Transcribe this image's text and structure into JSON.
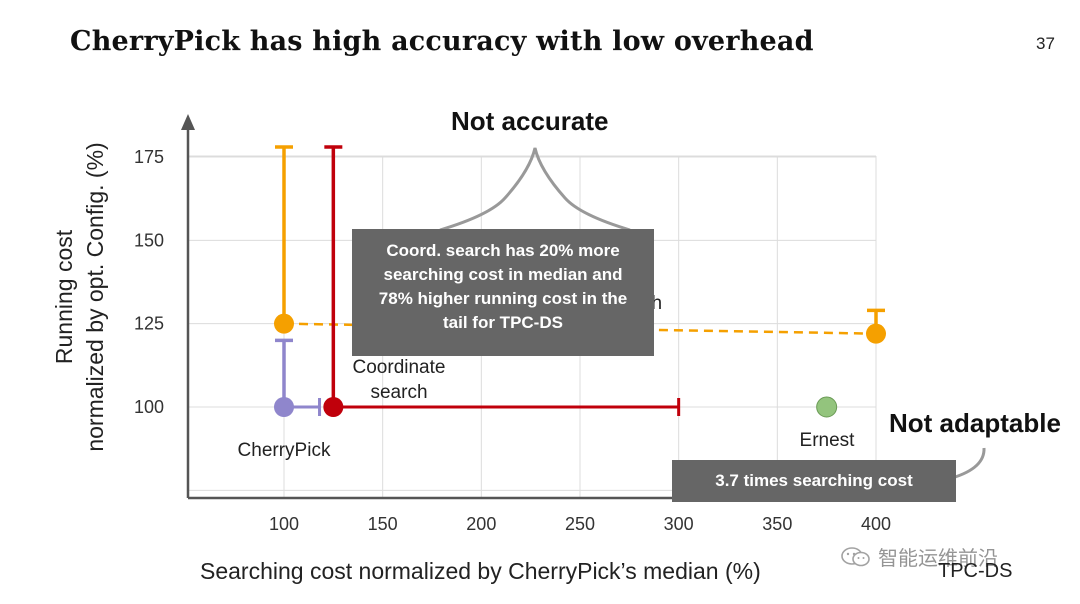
{
  "slide": {
    "title": "CherryPick has high accuracy with low overhead",
    "page_number": "37",
    "tag": "TPC-DS",
    "watermark": "智能运维前沿"
  },
  "callouts": {
    "main_lines": [
      "Coord. search has 20% more",
      "searching cost in median and",
      "78% higher running cost in the",
      "tail for TPC-DS"
    ],
    "small": "3.7 times searching cost"
  },
  "annotations": {
    "top": "Not accurate",
    "right": "Not adaptable"
  },
  "chart_data": {
    "type": "scatter",
    "title": "",
    "xlabel": "Searching cost normalized by CherryPick’s median (%)",
    "ylabel_lines": [
      "Running cost",
      "normalized by opt. Config. (%)"
    ],
    "xlim": [
      50,
      400
    ],
    "ylim": [
      75,
      180
    ],
    "x_ticks": [
      100,
      150,
      200,
      250,
      300,
      350,
      400
    ],
    "y_ticks": [
      100,
      125,
      150,
      175
    ],
    "grid": true,
    "series": [
      {
        "name": "CherryPick",
        "color": "#8f86cc",
        "point": [
          100,
          100
        ],
        "x_error": [
          100,
          118
        ],
        "y_error": [
          100,
          120
        ],
        "label": "CherryPick"
      },
      {
        "name": "Coordinate search",
        "color": "#c0000b",
        "point": [
          125,
          100
        ],
        "x_error": [
          125,
          300
        ],
        "y_error": [
          100,
          178
        ],
        "label_lines": [
          "Coordinate",
          "search"
        ]
      },
      {
        "name": "Random search",
        "color": "#f5a000",
        "points": [
          [
            100,
            125
          ],
          [
            400,
            122
          ]
        ],
        "y_errors": [
          [
            125,
            178
          ],
          [
            122,
            129
          ]
        ],
        "label": "Random search",
        "visible_label_fragment": "ch"
      },
      {
        "name": "Ernest",
        "color": "#93c47d",
        "point": [
          375,
          100
        ],
        "label": "Ernest"
      }
    ]
  }
}
